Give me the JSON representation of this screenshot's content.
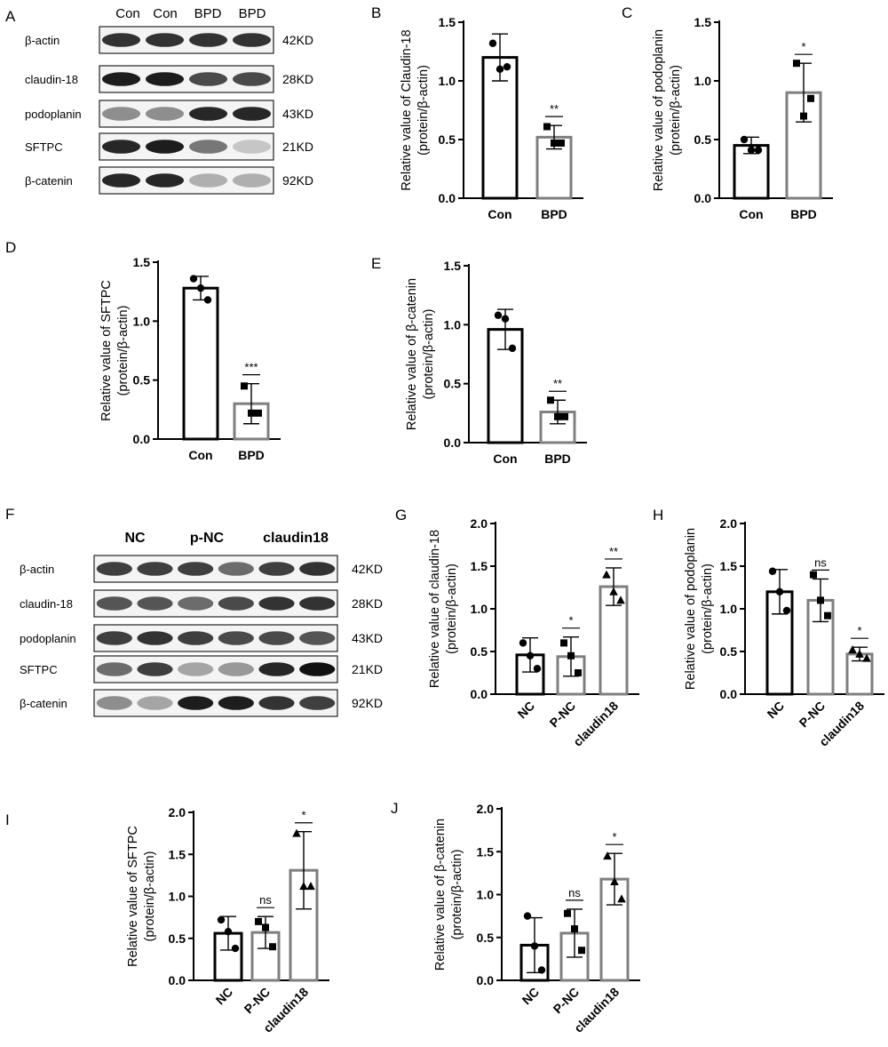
{
  "colors": {
    "con": "#000000",
    "treat": "#7f7f7f",
    "band": "#1a1a1a"
  },
  "blot_a": {
    "letter": "A",
    "columns": [
      "Con",
      "Con",
      "BPD",
      "BPD"
    ],
    "rows": [
      {
        "protein": "β-actin",
        "kd": "42KD",
        "intensity": [
          0.85,
          0.85,
          0.85,
          0.85
        ]
      },
      {
        "protein": "claudin-18",
        "kd": "28KD",
        "intensity": [
          0.95,
          0.95,
          0.75,
          0.75
        ]
      },
      {
        "protein": "podoplanin",
        "kd": "43KD",
        "intensity": [
          0.45,
          0.45,
          0.9,
          0.9
        ]
      },
      {
        "protein": "SFTPC",
        "kd": "21KD",
        "intensity": [
          0.9,
          0.95,
          0.55,
          0.2
        ]
      },
      {
        "protein": "β-catenin",
        "kd": "92KD",
        "intensity": [
          0.9,
          0.9,
          0.3,
          0.3
        ]
      }
    ]
  },
  "blot_f": {
    "letter": "F",
    "groups": [
      "NC",
      "p-NC",
      "claudin18"
    ],
    "rows": [
      {
        "protein": "β-actin",
        "kd": "42KD",
        "intensity": [
          0.8,
          0.8,
          0.8,
          0.6,
          0.8,
          0.85
        ]
      },
      {
        "protein": "claudin-18",
        "kd": "28KD",
        "intensity": [
          0.7,
          0.7,
          0.6,
          0.75,
          0.85,
          0.85
        ]
      },
      {
        "protein": "podoplanin",
        "kd": "43KD",
        "intensity": [
          0.8,
          0.85,
          0.8,
          0.75,
          0.75,
          0.7
        ]
      },
      {
        "protein": "SFTPC",
        "kd": "21KD",
        "intensity": [
          0.6,
          0.8,
          0.35,
          0.4,
          0.9,
          1.0
        ]
      },
      {
        "protein": "β-catenin",
        "kd": "92KD",
        "intensity": [
          0.45,
          0.35,
          0.95,
          0.95,
          0.85,
          0.8
        ]
      }
    ]
  },
  "chart_data": [
    {
      "letter": "B",
      "type": "bar",
      "ylabel": [
        "Relative value of Claudin-18",
        "(protein/β-actin)"
      ],
      "categories": [
        "Con",
        "BPD"
      ],
      "values": [
        1.2,
        0.52
      ],
      "errors": [
        0.2,
        0.1
      ],
      "points": [
        [
          1.32,
          1.1,
          1.12
        ],
        [
          0.61,
          0.47,
          0.47
        ]
      ],
      "markers": [
        "circle",
        "square"
      ],
      "significance": [
        "",
        "**"
      ],
      "ylim": [
        0,
        1.5
      ],
      "ticks": [
        0,
        0.5,
        1.0,
        1.5
      ]
    },
    {
      "letter": "C",
      "type": "bar",
      "ylabel": [
        "Relative value of podoplanin",
        "(protein/β-actin)"
      ],
      "categories": [
        "Con",
        "BPD"
      ],
      "values": [
        0.45,
        0.9
      ],
      "errors": [
        0.07,
        0.25
      ],
      "points": [
        [
          0.5,
          0.41,
          0.41
        ],
        [
          1.15,
          0.7,
          0.85
        ]
      ],
      "markers": [
        "circle",
        "square"
      ],
      "significance": [
        "",
        "*"
      ],
      "ylim": [
        0,
        1.5
      ],
      "ticks": [
        0,
        0.5,
        1.0,
        1.5
      ]
    },
    {
      "letter": "D",
      "type": "bar",
      "ylabel": [
        "Relative value of SFTPC",
        "(protein/β-actin)"
      ],
      "categories": [
        "Con",
        "BPD"
      ],
      "values": [
        1.28,
        0.3
      ],
      "errors": [
        0.1,
        0.17
      ],
      "points": [
        [
          1.36,
          1.28,
          1.18
        ],
        [
          0.45,
          0.22,
          0.22
        ]
      ],
      "markers": [
        "circle",
        "square"
      ],
      "significance": [
        "",
        "***"
      ],
      "ylim": [
        0,
        1.5
      ],
      "ticks": [
        0,
        0.5,
        1.0,
        1.5
      ]
    },
    {
      "letter": "E",
      "type": "bar",
      "ylabel": [
        "Relative value of β-catenin",
        "(protein/β-actin)"
      ],
      "categories": [
        "Con",
        "BPD"
      ],
      "values": [
        0.96,
        0.26
      ],
      "errors": [
        0.17,
        0.1
      ],
      "points": [
        [
          1.08,
          1.05,
          0.8
        ],
        [
          0.36,
          0.22,
          0.22
        ]
      ],
      "markers": [
        "circle",
        "square"
      ],
      "significance": [
        "",
        "**"
      ],
      "ylim": [
        0,
        1.5
      ],
      "ticks": [
        0,
        0.5,
        1.0,
        1.5
      ]
    },
    {
      "letter": "G",
      "type": "bar",
      "ylabel": [
        "Relative value of claudin-18",
        "(protein/β-actin)"
      ],
      "categories": [
        "NC",
        "P-NC",
        "claudin18"
      ],
      "values": [
        0.46,
        0.44,
        1.26
      ],
      "errors": [
        0.2,
        0.23,
        0.22
      ],
      "points": [
        [
          0.6,
          0.45,
          0.3
        ],
        [
          0.6,
          0.45,
          0.25
        ],
        [
          1.4,
          1.2,
          1.1
        ]
      ],
      "markers": [
        "circle",
        "square",
        "triangle"
      ],
      "significance": [
        "",
        "*",
        "**"
      ],
      "ylim": [
        0,
        2.0
      ],
      "ticks": [
        0,
        0.5,
        1.0,
        1.5,
        2.0
      ]
    },
    {
      "letter": "H",
      "type": "bar",
      "ylabel": [
        "Relative value of podoplanin",
        "(protein/β-actin)"
      ],
      "categories": [
        "NC",
        "P-NC",
        "claudin18"
      ],
      "values": [
        1.2,
        1.1,
        0.47
      ],
      "errors": [
        0.26,
        0.25,
        0.08
      ],
      "points": [
        [
          1.44,
          1.2,
          0.98
        ],
        [
          1.4,
          1.1,
          0.92
        ],
        [
          0.52,
          0.47,
          0.42
        ]
      ],
      "markers": [
        "circle",
        "square",
        "triangle"
      ],
      "significance": [
        "",
        "ns",
        "*"
      ],
      "ylim": [
        0,
        2.0
      ],
      "ticks": [
        0,
        0.5,
        1.0,
        1.5,
        2.0
      ]
    },
    {
      "letter": "I",
      "type": "bar",
      "ylabel": [
        "Relative value of SFTPC",
        "(protein/β-actin)"
      ],
      "categories": [
        "NC",
        "P-NC",
        "claudin18"
      ],
      "values": [
        0.56,
        0.57,
        1.31
      ],
      "errors": [
        0.2,
        0.19,
        0.46
      ],
      "points": [
        [
          0.72,
          0.58,
          0.38
        ],
        [
          0.7,
          0.63,
          0.4
        ],
        [
          1.75,
          1.12,
          1.12
        ]
      ],
      "markers": [
        "circle",
        "square",
        "triangle"
      ],
      "significance": [
        "",
        "ns",
        "*"
      ],
      "ylim": [
        0,
        2.0
      ],
      "ticks": [
        0,
        0.5,
        1.0,
        1.5,
        2.0
      ]
    },
    {
      "letter": "J",
      "type": "bar",
      "ylabel": [
        "Relative value of β-catenin",
        "(protein/β-actin)"
      ],
      "categories": [
        "NC",
        "P-NC",
        "claudin18"
      ],
      "values": [
        0.41,
        0.55,
        1.18
      ],
      "errors": [
        0.32,
        0.28,
        0.3
      ],
      "points": [
        [
          0.75,
          0.4,
          0.12
        ],
        [
          0.78,
          0.6,
          0.35
        ],
        [
          1.45,
          1.15,
          0.95
        ]
      ],
      "markers": [
        "circle",
        "square",
        "triangle"
      ],
      "significance": [
        "",
        "ns",
        "*"
      ],
      "ylim": [
        0,
        2.0
      ],
      "ticks": [
        0,
        0.5,
        1.0,
        1.5,
        2.0
      ]
    }
  ]
}
